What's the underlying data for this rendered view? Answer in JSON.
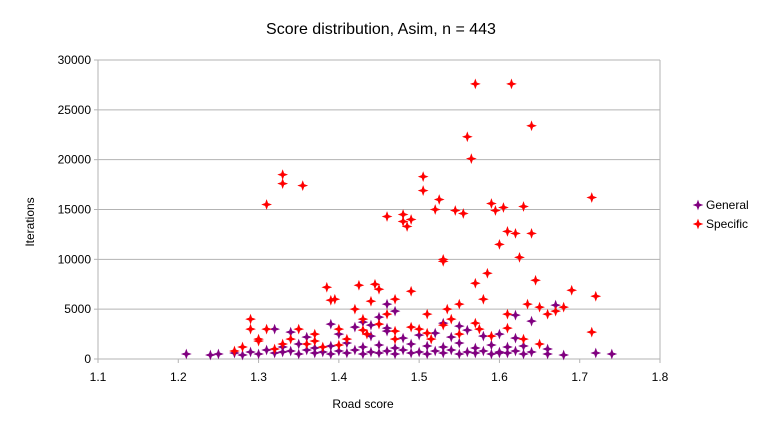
{
  "chart_data": {
    "type": "scatter",
    "title": "Score distribution, Asim, n = 443",
    "xlabel": "Road score",
    "ylabel": "Iterations",
    "xlim": [
      1.1,
      1.8
    ],
    "ylim": [
      0,
      30000
    ],
    "x_ticks": [
      "1.1",
      "1.2",
      "1.3",
      "1.4",
      "1.5",
      "1.6",
      "1.7",
      "1.8"
    ],
    "y_ticks": [
      "0",
      "5000",
      "10000",
      "15000",
      "20000",
      "25000",
      "30000"
    ],
    "grid": "horizontal",
    "legend": "right",
    "series": [
      {
        "name": "General",
        "color": "#800080",
        "marker": "plus",
        "points": [
          [
            1.21,
            500
          ],
          [
            1.24,
            400
          ],
          [
            1.25,
            500
          ],
          [
            1.27,
            600
          ],
          [
            1.28,
            400
          ],
          [
            1.29,
            700
          ],
          [
            1.3,
            500
          ],
          [
            1.31,
            900
          ],
          [
            1.32,
            600
          ],
          [
            1.33,
            700
          ],
          [
            1.34,
            800
          ],
          [
            1.35,
            500
          ],
          [
            1.36,
            900
          ],
          [
            1.37,
            600
          ],
          [
            1.38,
            700
          ],
          [
            1.39,
            500
          ],
          [
            1.4,
            800
          ],
          [
            1.41,
            600
          ],
          [
            1.42,
            900
          ],
          [
            1.43,
            500
          ],
          [
            1.44,
            700
          ],
          [
            1.45,
            600
          ],
          [
            1.46,
            800
          ],
          [
            1.47,
            500
          ],
          [
            1.48,
            900
          ],
          [
            1.49,
            600
          ],
          [
            1.5,
            700
          ],
          [
            1.51,
            500
          ],
          [
            1.52,
            800
          ],
          [
            1.53,
            600
          ],
          [
            1.54,
            900
          ],
          [
            1.55,
            500
          ],
          [
            1.56,
            700
          ],
          [
            1.57,
            600
          ],
          [
            1.58,
            800
          ],
          [
            1.59,
            500
          ],
          [
            1.6,
            700
          ],
          [
            1.61,
            600
          ],
          [
            1.62,
            800
          ],
          [
            1.63,
            500
          ],
          [
            1.64,
            700
          ],
          [
            1.66,
            500
          ],
          [
            1.68,
            400
          ],
          [
            1.72,
            600
          ],
          [
            1.74,
            500
          ],
          [
            1.33,
            1200
          ],
          [
            1.35,
            1500
          ],
          [
            1.37,
            1100
          ],
          [
            1.39,
            1300
          ],
          [
            1.41,
            1600
          ],
          [
            1.43,
            1200
          ],
          [
            1.45,
            1400
          ],
          [
            1.47,
            1100
          ],
          [
            1.49,
            1500
          ],
          [
            1.51,
            1300
          ],
          [
            1.53,
            1200
          ],
          [
            1.55,
            1600
          ],
          [
            1.57,
            1100
          ],
          [
            1.59,
            1400
          ],
          [
            1.61,
            1200
          ],
          [
            1.63,
            1300
          ],
          [
            1.36,
            2200
          ],
          [
            1.4,
            2500
          ],
          [
            1.44,
            2300
          ],
          [
            1.46,
            2800
          ],
          [
            1.48,
            2100
          ],
          [
            1.5,
            2400
          ],
          [
            1.52,
            2600
          ],
          [
            1.54,
            2200
          ],
          [
            1.56,
            2900
          ],
          [
            1.58,
            2300
          ],
          [
            1.6,
            2500
          ],
          [
            1.62,
            2100
          ],
          [
            1.32,
            3000
          ],
          [
            1.34,
            2700
          ],
          [
            1.42,
            3200
          ],
          [
            1.44,
            3400
          ],
          [
            1.46,
            3100
          ],
          [
            1.39,
            3500
          ],
          [
            1.43,
            3700
          ],
          [
            1.45,
            4200
          ],
          [
            1.46,
            5500
          ],
          [
            1.47,
            4800
          ],
          [
            1.53,
            3600
          ],
          [
            1.55,
            3300
          ],
          [
            1.62,
            4400
          ],
          [
            1.64,
            3800
          ],
          [
            1.67,
            5400
          ],
          [
            1.66,
            1000
          ],
          [
            1.6,
            600
          ]
        ]
      },
      {
        "name": "Specific",
        "color": "#ff0000",
        "marker": "plus",
        "points": [
          [
            1.27,
            800
          ],
          [
            1.28,
            1200
          ],
          [
            1.29,
            3000
          ],
          [
            1.29,
            4000
          ],
          [
            1.3,
            1800
          ],
          [
            1.31,
            3000
          ],
          [
            1.31,
            15500
          ],
          [
            1.32,
            1000
          ],
          [
            1.33,
            17600
          ],
          [
            1.33,
            18500
          ],
          [
            1.34,
            2000
          ],
          [
            1.35,
            3000
          ],
          [
            1.355,
            17400
          ],
          [
            1.36,
            1500
          ],
          [
            1.37,
            2500
          ],
          [
            1.38,
            1200
          ],
          [
            1.385,
            7200
          ],
          [
            1.39,
            5900
          ],
          [
            1.395,
            6000
          ],
          [
            1.4,
            3000
          ],
          [
            1.41,
            2000
          ],
          [
            1.42,
            5000
          ],
          [
            1.425,
            7400
          ],
          [
            1.43,
            4000
          ],
          [
            1.435,
            2500
          ],
          [
            1.44,
            5800
          ],
          [
            1.445,
            7500
          ],
          [
            1.45,
            7000
          ],
          [
            1.46,
            14300
          ],
          [
            1.46,
            4500
          ],
          [
            1.47,
            6000
          ],
          [
            1.47,
            2000
          ],
          [
            1.48,
            13800
          ],
          [
            1.48,
            14500
          ],
          [
            1.485,
            13300
          ],
          [
            1.49,
            14000
          ],
          [
            1.49,
            6800
          ],
          [
            1.5,
            3000
          ],
          [
            1.505,
            16900
          ],
          [
            1.505,
            18300
          ],
          [
            1.51,
            4500
          ],
          [
            1.515,
            2000
          ],
          [
            1.52,
            15000
          ],
          [
            1.525,
            16000
          ],
          [
            1.53,
            10000
          ],
          [
            1.53,
            9800
          ],
          [
            1.535,
            5000
          ],
          [
            1.54,
            4000
          ],
          [
            1.545,
            14900
          ],
          [
            1.55,
            5500
          ],
          [
            1.555,
            14600
          ],
          [
            1.56,
            22300
          ],
          [
            1.565,
            20100
          ],
          [
            1.57,
            27600
          ],
          [
            1.57,
            7600
          ],
          [
            1.575,
            3000
          ],
          [
            1.58,
            6000
          ],
          [
            1.585,
            8600
          ],
          [
            1.59,
            15600
          ],
          [
            1.595,
            14900
          ],
          [
            1.6,
            11500
          ],
          [
            1.605,
            15200
          ],
          [
            1.61,
            12800
          ],
          [
            1.61,
            4500
          ],
          [
            1.615,
            27600
          ],
          [
            1.62,
            12600
          ],
          [
            1.625,
            10200
          ],
          [
            1.63,
            15300
          ],
          [
            1.635,
            5500
          ],
          [
            1.64,
            12600
          ],
          [
            1.64,
            23400
          ],
          [
            1.645,
            7900
          ],
          [
            1.65,
            5200
          ],
          [
            1.66,
            4500
          ],
          [
            1.67,
            4800
          ],
          [
            1.68,
            5200
          ],
          [
            1.69,
            6900
          ],
          [
            1.715,
            16200
          ],
          [
            1.715,
            2700
          ],
          [
            1.72,
            6300
          ],
          [
            1.3,
            2000
          ],
          [
            1.33,
            1500
          ],
          [
            1.37,
            1800
          ],
          [
            1.4,
            1400
          ],
          [
            1.43,
            2900
          ],
          [
            1.45,
            3500
          ],
          [
            1.47,
            2800
          ],
          [
            1.49,
            3200
          ],
          [
            1.51,
            2600
          ],
          [
            1.53,
            3400
          ],
          [
            1.55,
            2500
          ],
          [
            1.57,
            3600
          ],
          [
            1.59,
            2300
          ],
          [
            1.61,
            3100
          ],
          [
            1.63,
            2000
          ],
          [
            1.65,
            1500
          ]
        ]
      }
    ]
  }
}
